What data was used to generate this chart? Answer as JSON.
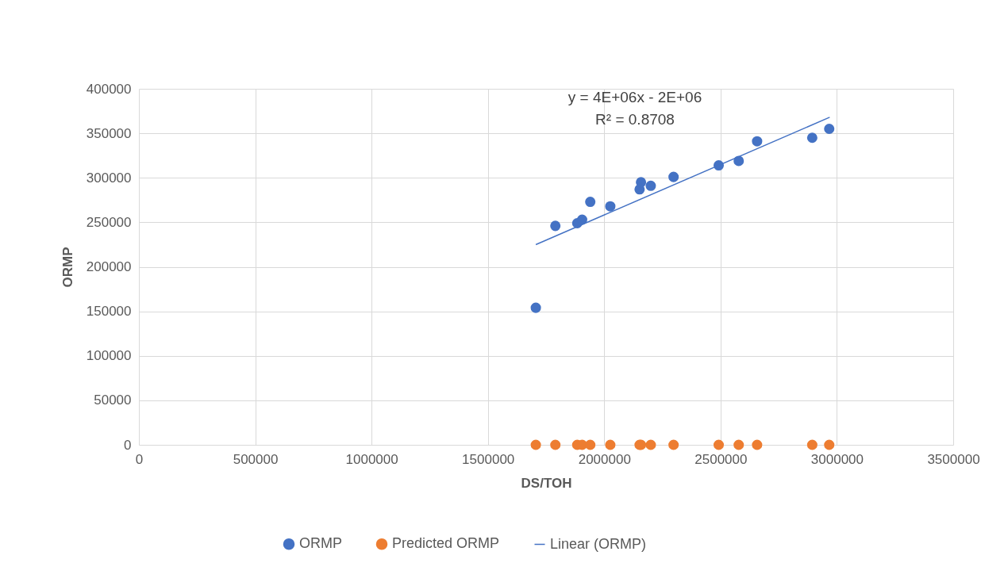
{
  "chart_data": {
    "type": "scatter",
    "xlabel": "DS/TOH",
    "ylabel": "ORMP",
    "xlim": [
      0,
      3500000
    ],
    "xticks": [
      0,
      500000,
      1000000,
      1500000,
      2000000,
      2500000,
      3000000,
      3500000
    ],
    "ylim": [
      0,
      400000
    ],
    "yticks": [
      0,
      50000,
      100000,
      150000,
      200000,
      250000,
      300000,
      350000,
      400000
    ],
    "grid": true,
    "legend": "bottom",
    "marker": "circle",
    "annotations": [
      "y = 4E+06x - 2E+06",
      "R² = 0.8708"
    ],
    "series": [
      {
        "name": "ORMP",
        "color": "#4472c4",
        "x": [
          1706000,
          1790000,
          1884000,
          1905000,
          1940000,
          2026000,
          2152000,
          2158000,
          2200000,
          2298000,
          2492000,
          2578000,
          2657000,
          2894000,
          2967000
        ],
        "values": [
          154000,
          246000,
          249000,
          253000,
          273000,
          268000,
          287000,
          295000,
          291000,
          301000,
          314000,
          319000,
          341000,
          345000,
          355000
        ]
      },
      {
        "name": "Predicted ORMP",
        "color": "#ed7d31",
        "x": [
          1706000,
          1790000,
          1884000,
          1905000,
          1940000,
          2026000,
          2152000,
          2158000,
          2200000,
          2298000,
          2492000,
          2578000,
          2657000,
          2894000,
          2967000
        ],
        "values": [
          0,
          0,
          0,
          0,
          0,
          0,
          0,
          0,
          0,
          0,
          0,
          0,
          0,
          0,
          0
        ]
      },
      {
        "name": "Linear (ORMP)",
        "type": "line",
        "marker": "none",
        "color": "#4472c4",
        "x": [
          1706000,
          2969000
        ],
        "values": [
          225000,
          368000
        ]
      }
    ]
  }
}
